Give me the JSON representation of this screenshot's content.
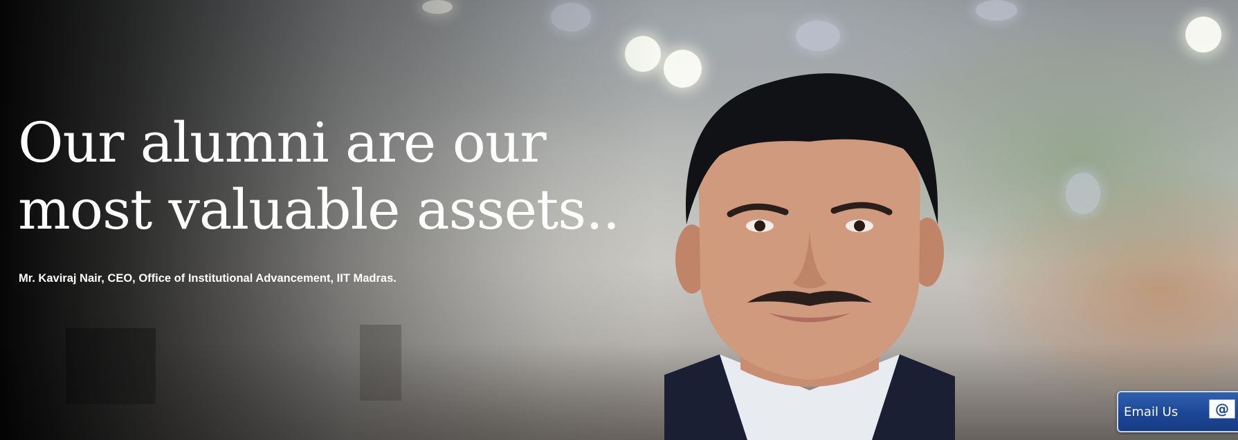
{
  "hero": {
    "headline": "Our alumni are our\nmost valuable assets..",
    "attribution": "Mr. Kaviraj Nair, CEO, Office of Institutional Advancement, IIT Madras.",
    "portrait_icon": "person-portrait"
  },
  "contact": {
    "email_label": "Email Us",
    "email_icon": "at-sign-icon",
    "email_icon_glyph": "@",
    "accent_color": "#1c4796"
  }
}
